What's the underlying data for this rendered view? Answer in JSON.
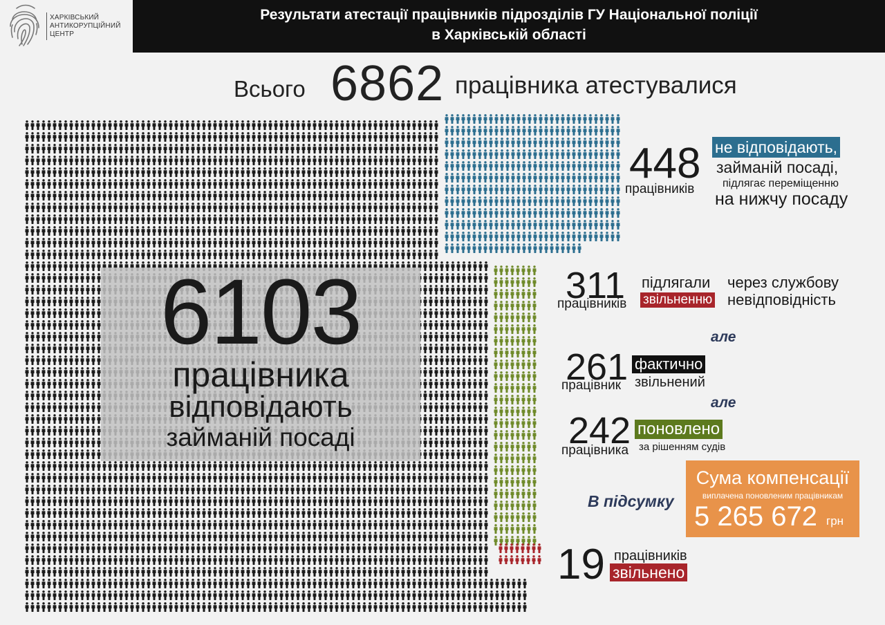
{
  "logo": {
    "line1": "ХАРКІВСЬКИЙ",
    "line2": "АНТИКОРУПЦІЙНИЙ",
    "line3": "ЦЕНТР",
    "icon": "fingerprint-icon"
  },
  "header": {
    "title_line1": "Результати атестації працівників підрозділів ГУ Національної поліції",
    "title_line2": "в Харківській області"
  },
  "total": {
    "prefix": "Всього",
    "value": "6862",
    "suffix": "працівника атестувалися"
  },
  "fit": {
    "value": "6103",
    "line1": "працівника",
    "line2": "відповідають",
    "line3": "займаній посаді",
    "color": "#1a1a1a"
  },
  "demoted": {
    "value": "448",
    "unit": "працівників",
    "tag": "не відповідають,",
    "line2": "займаній посаді,",
    "line3": "підлягає переміщенню",
    "line4": "на нижчу посаду",
    "color": "#2c6e8f"
  },
  "dismissal_due": {
    "value": "311",
    "unit": "працівників",
    "word1": "підлягали",
    "tag": "звільненню",
    "reason1": "через службову",
    "reason2": "невідповідність",
    "color": "#6f8a2a"
  },
  "connector1": "але",
  "dismissed_actual": {
    "value": "261",
    "unit": "працівник",
    "tag": "фактично",
    "word2": "звільнений"
  },
  "connector2": "але",
  "reinstated": {
    "value": "242",
    "unit": "працівника",
    "tag": "поновлено",
    "note": "за рішенням судів"
  },
  "summary_label": "В підсумку",
  "compensation": {
    "title": "Сума компенсації",
    "subtitle": "виплачена поновленим працівникам",
    "amount": "5 265 672",
    "currency": "грн",
    "color": "#e8934a"
  },
  "fired": {
    "value": "19",
    "unit": "працівників",
    "tag": "звільнено",
    "color": "#a8252b"
  }
}
